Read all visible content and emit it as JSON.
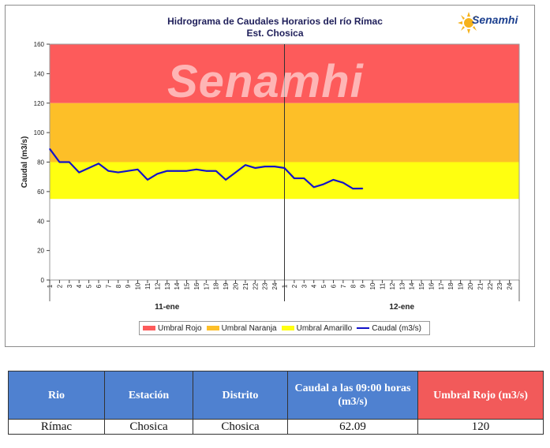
{
  "title": "Hidrograma de Caudales Horarios del río Rímac",
  "subtitle": "Est. Chosica",
  "logo_text": "Senamhi",
  "watermark_text": "Senamhi",
  "chart_data": {
    "type": "line",
    "title": "Hidrograma de Caudales Horarios del río Rímac",
    "subtitle": "Est. Chosica",
    "ylabel": "Caudal  (m3/s)",
    "ylim": [
      0,
      160
    ],
    "yticks": [
      0,
      20,
      40,
      60,
      80,
      100,
      120,
      140,
      160
    ],
    "x_hours": [
      "1",
      "2",
      "3",
      "4",
      "5",
      "6",
      "7",
      "8",
      "9",
      "10",
      "11",
      "12",
      "13",
      "14",
      "15",
      "16",
      "17",
      "18",
      "19",
      "20",
      "21",
      "22",
      "23",
      "24",
      "1",
      "2",
      "3",
      "4",
      "5",
      "6",
      "7",
      "8",
      "9",
      "10",
      "11",
      "12",
      "13",
      "14",
      "15",
      "16",
      "17",
      "18",
      "19",
      "20",
      "21",
      "22",
      "23",
      "24"
    ],
    "day_labels": [
      "11-ene",
      "12-ene"
    ],
    "bands": [
      {
        "name": "Umbral Rojo",
        "from": 120,
        "to": 160,
        "color": "#fd5b5b"
      },
      {
        "name": "Umbral Naranja",
        "from": 80,
        "to": 120,
        "color": "#fdbf28"
      },
      {
        "name": "Umbral Amarillo",
        "from": 55,
        "to": 80,
        "color": "#ffff10"
      }
    ],
    "series": [
      {
        "name": "Caudal (m3/s)",
        "color": "#1414c8",
        "values": [
          89,
          80,
          80,
          73,
          76,
          79,
          74,
          73,
          74,
          75,
          68,
          72,
          74,
          74,
          74,
          75,
          74,
          74,
          68,
          73,
          78,
          76,
          77,
          77,
          76,
          69,
          69,
          63,
          65,
          68,
          66,
          62,
          62.09
        ]
      }
    ],
    "legend_position": "bottom",
    "grid": false
  },
  "legend": [
    {
      "label": "Umbral Rojo",
      "color": "#fd5b5b",
      "kind": "box"
    },
    {
      "label": "Umbral Naranja",
      "color": "#fdbf28",
      "kind": "box"
    },
    {
      "label": "Umbral Amarillo",
      "color": "#ffff10",
      "kind": "box"
    },
    {
      "label": "Caudal (m3/s)",
      "color": "#1414c8",
      "kind": "line"
    }
  ],
  "table": {
    "headers": [
      "Rio",
      "Estación",
      "Distrito",
      "Caudal a las 09:00 horas (m3/s)",
      "Umbral Rojo (m3/s)"
    ],
    "row": [
      "Rímac",
      "Chosica",
      "Chosica",
      "62.09",
      "120"
    ]
  }
}
